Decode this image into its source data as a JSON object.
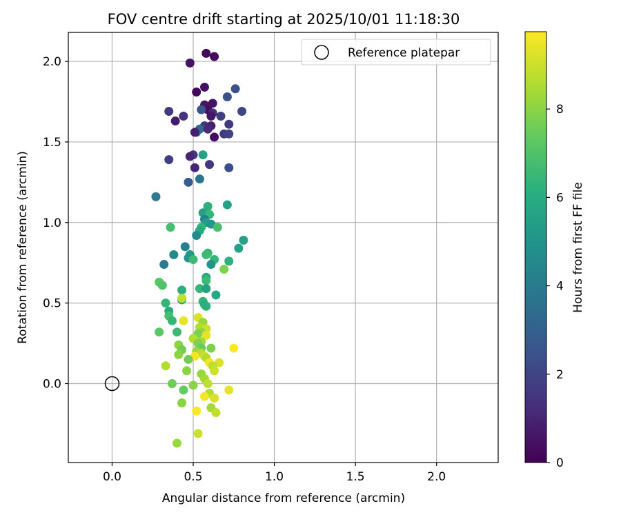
{
  "chart_data": {
    "type": "scatter",
    "title": "FOV centre drift starting at 2025/10/01 11:18:30",
    "xlabel": "Angular distance from reference (arcmin)",
    "ylabel": "Rotation from reference (arcmin)",
    "xlim": [
      -0.27,
      2.38
    ],
    "ylim": [
      -0.49,
      2.18
    ],
    "x_ticks": [
      0.0,
      0.5,
      1.0,
      1.5,
      2.0
    ],
    "x_tick_labels": [
      "0.0",
      "0.5",
      "1.0",
      "1.5",
      "2.0"
    ],
    "y_ticks": [
      0.0,
      0.5,
      1.0,
      1.5,
      2.0
    ],
    "y_tick_labels": [
      "0.0",
      "0.5",
      "1.0",
      "1.5",
      "2.0"
    ],
    "grid": true,
    "legend": {
      "position": "top-right",
      "label": "Reference platepar"
    },
    "reference_point": {
      "x": 0.0,
      "y": 0.0
    },
    "colorbar": {
      "label": "Hours from first FF file",
      "colormap": "viridis",
      "range": [
        0,
        9.75
      ],
      "ticks": [
        0,
        2,
        4,
        6,
        8
      ],
      "tick_labels": [
        "0",
        "2",
        "4",
        "6",
        "8"
      ]
    },
    "points": [
      {
        "x": 0.58,
        "y": 2.05,
        "t": 0.2
      },
      {
        "x": 0.63,
        "y": 2.03,
        "t": 0.3
      },
      {
        "x": 0.48,
        "y": 1.99,
        "t": 0.5
      },
      {
        "x": 0.57,
        "y": 1.84,
        "t": 0.4
      },
      {
        "x": 0.52,
        "y": 1.81,
        "t": 0.2
      },
      {
        "x": 0.76,
        "y": 1.83,
        "t": 2.4
      },
      {
        "x": 0.71,
        "y": 1.78,
        "t": 2.5
      },
      {
        "x": 0.57,
        "y": 1.73,
        "t": 0.6
      },
      {
        "x": 0.62,
        "y": 1.74,
        "t": 0.5
      },
      {
        "x": 0.59,
        "y": 1.7,
        "t": 0.3
      },
      {
        "x": 0.55,
        "y": 1.7,
        "t": 2.6
      },
      {
        "x": 0.35,
        "y": 1.69,
        "t": 1.6
      },
      {
        "x": 0.44,
        "y": 1.66,
        "t": 1.4
      },
      {
        "x": 0.62,
        "y": 1.68,
        "t": 1.2
      },
      {
        "x": 0.8,
        "y": 1.69,
        "t": 2.0
      },
      {
        "x": 0.67,
        "y": 1.66,
        "t": 1.8
      },
      {
        "x": 0.61,
        "y": 1.66,
        "t": 0.6
      },
      {
        "x": 0.39,
        "y": 1.63,
        "t": 0.7
      },
      {
        "x": 0.72,
        "y": 1.61,
        "t": 1.6
      },
      {
        "x": 0.57,
        "y": 1.6,
        "t": 1.5
      },
      {
        "x": 0.61,
        "y": 1.6,
        "t": 0.8
      },
      {
        "x": 0.54,
        "y": 1.58,
        "t": 3.3
      },
      {
        "x": 0.52,
        "y": 1.56,
        "t": 3.6
      },
      {
        "x": 0.51,
        "y": 1.56,
        "t": 0.8
      },
      {
        "x": 0.59,
        "y": 1.58,
        "t": 1.1
      },
      {
        "x": 0.69,
        "y": 1.55,
        "t": 1.5
      },
      {
        "x": 0.72,
        "y": 1.55,
        "t": 1.9
      },
      {
        "x": 0.63,
        "y": 1.53,
        "t": 0.4
      },
      {
        "x": 0.5,
        "y": 1.42,
        "t": 1.6
      },
      {
        "x": 0.48,
        "y": 1.41,
        "t": 1.0
      },
      {
        "x": 0.56,
        "y": 1.42,
        "t": 5.6
      },
      {
        "x": 0.35,
        "y": 1.39,
        "t": 1.8
      },
      {
        "x": 0.6,
        "y": 1.36,
        "t": 1.5
      },
      {
        "x": 0.51,
        "y": 1.34,
        "t": 1.0
      },
      {
        "x": 0.72,
        "y": 1.34,
        "t": 2.3
      },
      {
        "x": 0.54,
        "y": 1.27,
        "t": 3.8
      },
      {
        "x": 0.47,
        "y": 1.25,
        "t": 2.9
      },
      {
        "x": 0.27,
        "y": 1.16,
        "t": 4.0
      },
      {
        "x": 0.71,
        "y": 1.11,
        "t": 5.6
      },
      {
        "x": 0.59,
        "y": 1.1,
        "t": 6.2
      },
      {
        "x": 0.56,
        "y": 1.06,
        "t": 5.6
      },
      {
        "x": 0.6,
        "y": 1.05,
        "t": 6.4
      },
      {
        "x": 0.57,
        "y": 1.02,
        "t": 4.2
      },
      {
        "x": 0.58,
        "y": 1.0,
        "t": 5.3
      },
      {
        "x": 0.61,
        "y": 0.99,
        "t": 5.1
      },
      {
        "x": 0.36,
        "y": 0.97,
        "t": 6.8
      },
      {
        "x": 0.55,
        "y": 0.97,
        "t": 6.4
      },
      {
        "x": 0.65,
        "y": 0.97,
        "t": 6.8
      },
      {
        "x": 0.54,
        "y": 0.95,
        "t": 6.0
      },
      {
        "x": 0.52,
        "y": 0.92,
        "t": 4.6
      },
      {
        "x": 0.81,
        "y": 0.89,
        "t": 5.6
      },
      {
        "x": 0.45,
        "y": 0.85,
        "t": 4.2
      },
      {
        "x": 0.78,
        "y": 0.84,
        "t": 5.6
      },
      {
        "x": 0.59,
        "y": 0.81,
        "t": 6.4
      },
      {
        "x": 0.38,
        "y": 0.8,
        "t": 4.6
      },
      {
        "x": 0.48,
        "y": 0.8,
        "t": 5.3
      },
      {
        "x": 0.58,
        "y": 0.8,
        "t": 6.6
      },
      {
        "x": 0.47,
        "y": 0.78,
        "t": 5.0
      },
      {
        "x": 0.5,
        "y": 0.77,
        "t": 6.6
      },
      {
        "x": 0.63,
        "y": 0.77,
        "t": 6.4
      },
      {
        "x": 0.72,
        "y": 0.76,
        "t": 6.2
      },
      {
        "x": 0.32,
        "y": 0.74,
        "t": 4.0
      },
      {
        "x": 0.61,
        "y": 0.74,
        "t": 5.0
      },
      {
        "x": 0.69,
        "y": 0.71,
        "t": 7.8
      },
      {
        "x": 0.58,
        "y": 0.66,
        "t": 6.0
      },
      {
        "x": 0.58,
        "y": 0.64,
        "t": 6.6
      },
      {
        "x": 0.29,
        "y": 0.63,
        "t": 7.2
      },
      {
        "x": 0.31,
        "y": 0.61,
        "t": 7.0
      },
      {
        "x": 0.43,
        "y": 0.58,
        "t": 6.2
      },
      {
        "x": 0.54,
        "y": 0.59,
        "t": 6.4
      },
      {
        "x": 0.58,
        "y": 0.59,
        "t": 5.6
      },
      {
        "x": 0.64,
        "y": 0.55,
        "t": 5.8
      },
      {
        "x": 0.43,
        "y": 0.52,
        "t": 5.6
      },
      {
        "x": 0.43,
        "y": 0.53,
        "t": 8.8
      },
      {
        "x": 0.33,
        "y": 0.5,
        "t": 6.4
      },
      {
        "x": 0.56,
        "y": 0.51,
        "t": 6.4
      },
      {
        "x": 0.57,
        "y": 0.49,
        "t": 6.0
      },
      {
        "x": 0.58,
        "y": 0.48,
        "t": 6.2
      },
      {
        "x": 0.35,
        "y": 0.45,
        "t": 6.0
      },
      {
        "x": 0.35,
        "y": 0.42,
        "t": 6.8
      },
      {
        "x": 0.53,
        "y": 0.41,
        "t": 9.2
      },
      {
        "x": 0.37,
        "y": 0.39,
        "t": 6.4
      },
      {
        "x": 0.44,
        "y": 0.39,
        "t": 9.4
      },
      {
        "x": 0.56,
        "y": 0.38,
        "t": 8.2
      },
      {
        "x": 0.54,
        "y": 0.35,
        "t": 8.6
      },
      {
        "x": 0.58,
        "y": 0.34,
        "t": 9.0
      },
      {
        "x": 0.55,
        "y": 0.32,
        "t": 8.2
      },
      {
        "x": 0.29,
        "y": 0.32,
        "t": 7.2
      },
      {
        "x": 0.4,
        "y": 0.32,
        "t": 6.6
      },
      {
        "x": 0.53,
        "y": 0.31,
        "t": 7.8
      },
      {
        "x": 0.58,
        "y": 0.3,
        "t": 9.4
      },
      {
        "x": 0.5,
        "y": 0.28,
        "t": 8.6
      },
      {
        "x": 0.55,
        "y": 0.26,
        "t": 8.4
      },
      {
        "x": 0.53,
        "y": 0.25,
        "t": 7.8
      },
      {
        "x": 0.41,
        "y": 0.24,
        "t": 8.0
      },
      {
        "x": 0.43,
        "y": 0.21,
        "t": 7.6
      },
      {
        "x": 0.55,
        "y": 0.22,
        "t": 7.4
      },
      {
        "x": 0.61,
        "y": 0.22,
        "t": 7.8
      },
      {
        "x": 0.75,
        "y": 0.22,
        "t": 9.7
      },
      {
        "x": 0.52,
        "y": 0.2,
        "t": 8.2
      },
      {
        "x": 0.55,
        "y": 0.19,
        "t": 8.6
      },
      {
        "x": 0.41,
        "y": 0.18,
        "t": 8.0
      },
      {
        "x": 0.51,
        "y": 0.17,
        "t": 9.6
      },
      {
        "x": 0.57,
        "y": 0.17,
        "t": 9.0
      },
      {
        "x": 0.47,
        "y": 0.15,
        "t": 7.6
      },
      {
        "x": 0.58,
        "y": 0.16,
        "t": 8.6
      },
      {
        "x": 0.6,
        "y": 0.13,
        "t": 9.6
      },
      {
        "x": 0.66,
        "y": 0.13,
        "t": 9.2
      },
      {
        "x": 0.33,
        "y": 0.11,
        "t": 8.6
      },
      {
        "x": 0.62,
        "y": 0.11,
        "t": 8.8
      },
      {
        "x": 0.63,
        "y": 0.08,
        "t": 9.0
      },
      {
        "x": 0.46,
        "y": 0.08,
        "t": 8.0
      },
      {
        "x": 0.55,
        "y": 0.06,
        "t": 8.2
      },
      {
        "x": 0.57,
        "y": 0.03,
        "t": 8.4
      },
      {
        "x": 0.59,
        "y": 0.0,
        "t": 8.8
      },
      {
        "x": 0.37,
        "y": 0.0,
        "t": 7.6
      },
      {
        "x": 0.5,
        "y": -0.01,
        "t": 8.0
      },
      {
        "x": 0.44,
        "y": -0.04,
        "t": 7.4
      },
      {
        "x": 0.72,
        "y": -0.04,
        "t": 9.4
      },
      {
        "x": 0.6,
        "y": -0.06,
        "t": 8.6
      },
      {
        "x": 0.57,
        "y": -0.08,
        "t": 9.6
      },
      {
        "x": 0.63,
        "y": -0.09,
        "t": 9.2
      },
      {
        "x": 0.43,
        "y": -0.12,
        "t": 8.0
      },
      {
        "x": 0.61,
        "y": -0.15,
        "t": 8.4
      },
      {
        "x": 0.52,
        "y": -0.17,
        "t": 9.7
      },
      {
        "x": 0.64,
        "y": -0.18,
        "t": 8.8
      },
      {
        "x": 0.53,
        "y": -0.31,
        "t": 9.0
      },
      {
        "x": 0.4,
        "y": -0.37,
        "t": 8.2
      }
    ]
  }
}
